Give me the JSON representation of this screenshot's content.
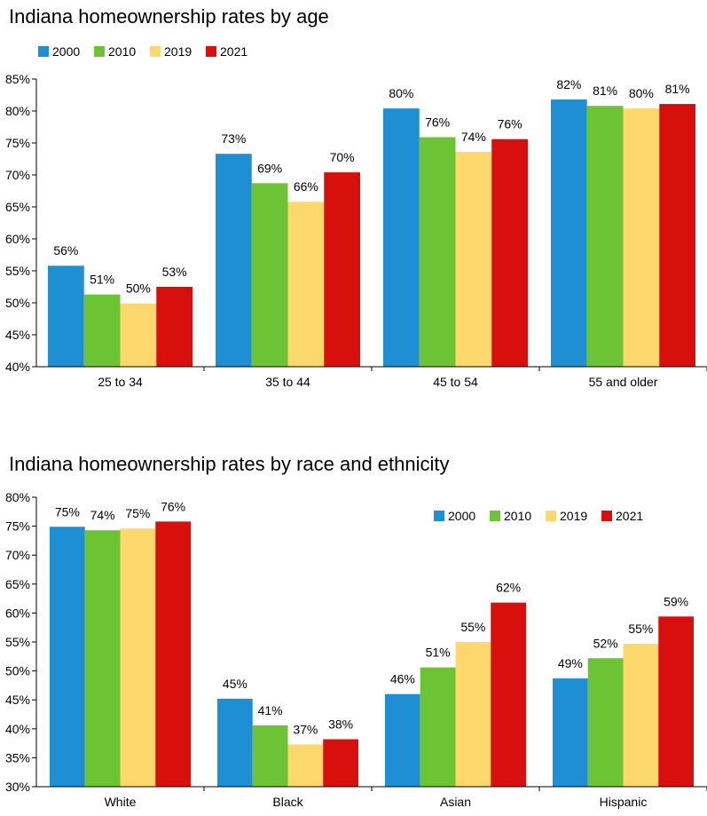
{
  "chart_data": [
    {
      "type": "bar",
      "title": "Indiana homeownership rates by age",
      "categories": [
        "25 to 34",
        "35 to 44",
        "45 to 54",
        "55 and older"
      ],
      "series": [
        {
          "name": "2000",
          "color": "#1f8fd3",
          "values": [
            55.8,
            73.3,
            80.4,
            81.8
          ],
          "labels": [
            "56%",
            "73%",
            "80%",
            "82%"
          ]
        },
        {
          "name": "2010",
          "color": "#6cc334",
          "values": [
            51.3,
            68.7,
            75.9,
            80.8
          ],
          "labels": [
            "51%",
            "69%",
            "76%",
            "81%"
          ]
        },
        {
          "name": "2019",
          "color": "#fdd86c",
          "values": [
            49.9,
            65.8,
            73.6,
            80.4
          ],
          "labels": [
            "50%",
            "66%",
            "74%",
            "80%"
          ]
        },
        {
          "name": "2021",
          "color": "#d7100e",
          "values": [
            52.5,
            70.4,
            75.6,
            81.1
          ],
          "labels": [
            "53%",
            "70%",
            "76%",
            "81%"
          ]
        }
      ],
      "ylim": [
        40,
        85
      ],
      "yticks": [
        "40%",
        "45%",
        "50%",
        "55%",
        "60%",
        "65%",
        "70%",
        "75%",
        "80%",
        "85%"
      ],
      "legend": "top-left",
      "grid": false,
      "xlabel": "",
      "ylabel": ""
    },
    {
      "type": "bar",
      "title": "Indiana homeownership rates by race and ethnicity",
      "categories": [
        "White",
        "Black",
        "Asian",
        "Hispanic"
      ],
      "series": [
        {
          "name": "2000",
          "color": "#1f8fd3",
          "values": [
            74.9,
            45.2,
            46.0,
            48.7
          ],
          "labels": [
            "75%",
            "45%",
            "46%",
            "49%"
          ]
        },
        {
          "name": "2010",
          "color": "#6cc334",
          "values": [
            74.3,
            40.6,
            50.6,
            52.2
          ],
          "labels": [
            "74%",
            "41%",
            "51%",
            "52%"
          ]
        },
        {
          "name": "2019",
          "color": "#fdd86c",
          "values": [
            74.6,
            37.3,
            55.0,
            54.7
          ],
          "labels": [
            "75%",
            "37%",
            "55%",
            "55%"
          ]
        },
        {
          "name": "2021",
          "color": "#d7100e",
          "values": [
            75.8,
            38.2,
            61.8,
            59.4
          ],
          "labels": [
            "76%",
            "38%",
            "62%",
            "59%"
          ]
        }
      ],
      "ylim": [
        30,
        80
      ],
      "yticks": [
        "30%",
        "35%",
        "40%",
        "45%",
        "50%",
        "55%",
        "60%",
        "65%",
        "70%",
        "75%",
        "80%"
      ],
      "legend": "top-right",
      "grid": false,
      "xlabel": "",
      "ylabel": ""
    }
  ]
}
